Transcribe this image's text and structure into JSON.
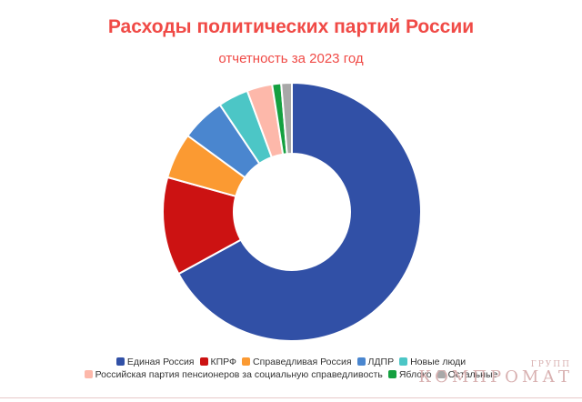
{
  "title": "Расходы политических партий России",
  "subtitle": "отчетность за 2023 год",
  "watermark": {
    "top": "ГРУПП",
    "main": "КОМПРОМАТ"
  },
  "chart_data": {
    "type": "pie",
    "donut": true,
    "title": "Расходы политических партий России",
    "subtitle": "отчетность за 2023 год",
    "legend_position": "bottom",
    "series": [
      {
        "name": "Единая Россия",
        "value": 65.5,
        "color": "#3150a6"
      },
      {
        "name": "КПРФ",
        "value": 12.0,
        "color": "#cc1212"
      },
      {
        "name": "Справедливая Россия",
        "value": 5.6,
        "color": "#fb9a32"
      },
      {
        "name": "ЛДПР",
        "value": 5.4,
        "color": "#4a86cf"
      },
      {
        "name": "Новые люди",
        "value": 3.7,
        "color": "#4cc6c6"
      },
      {
        "name": "Российская партия пенсионеров за социальную справедливость",
        "value": 3.1,
        "color": "#fdb8aa"
      },
      {
        "name": "Яблоко",
        "value": 1.1,
        "color": "#14a040"
      },
      {
        "name": "Остальные",
        "value": 1.3,
        "color": "#a8a8a8"
      }
    ]
  }
}
